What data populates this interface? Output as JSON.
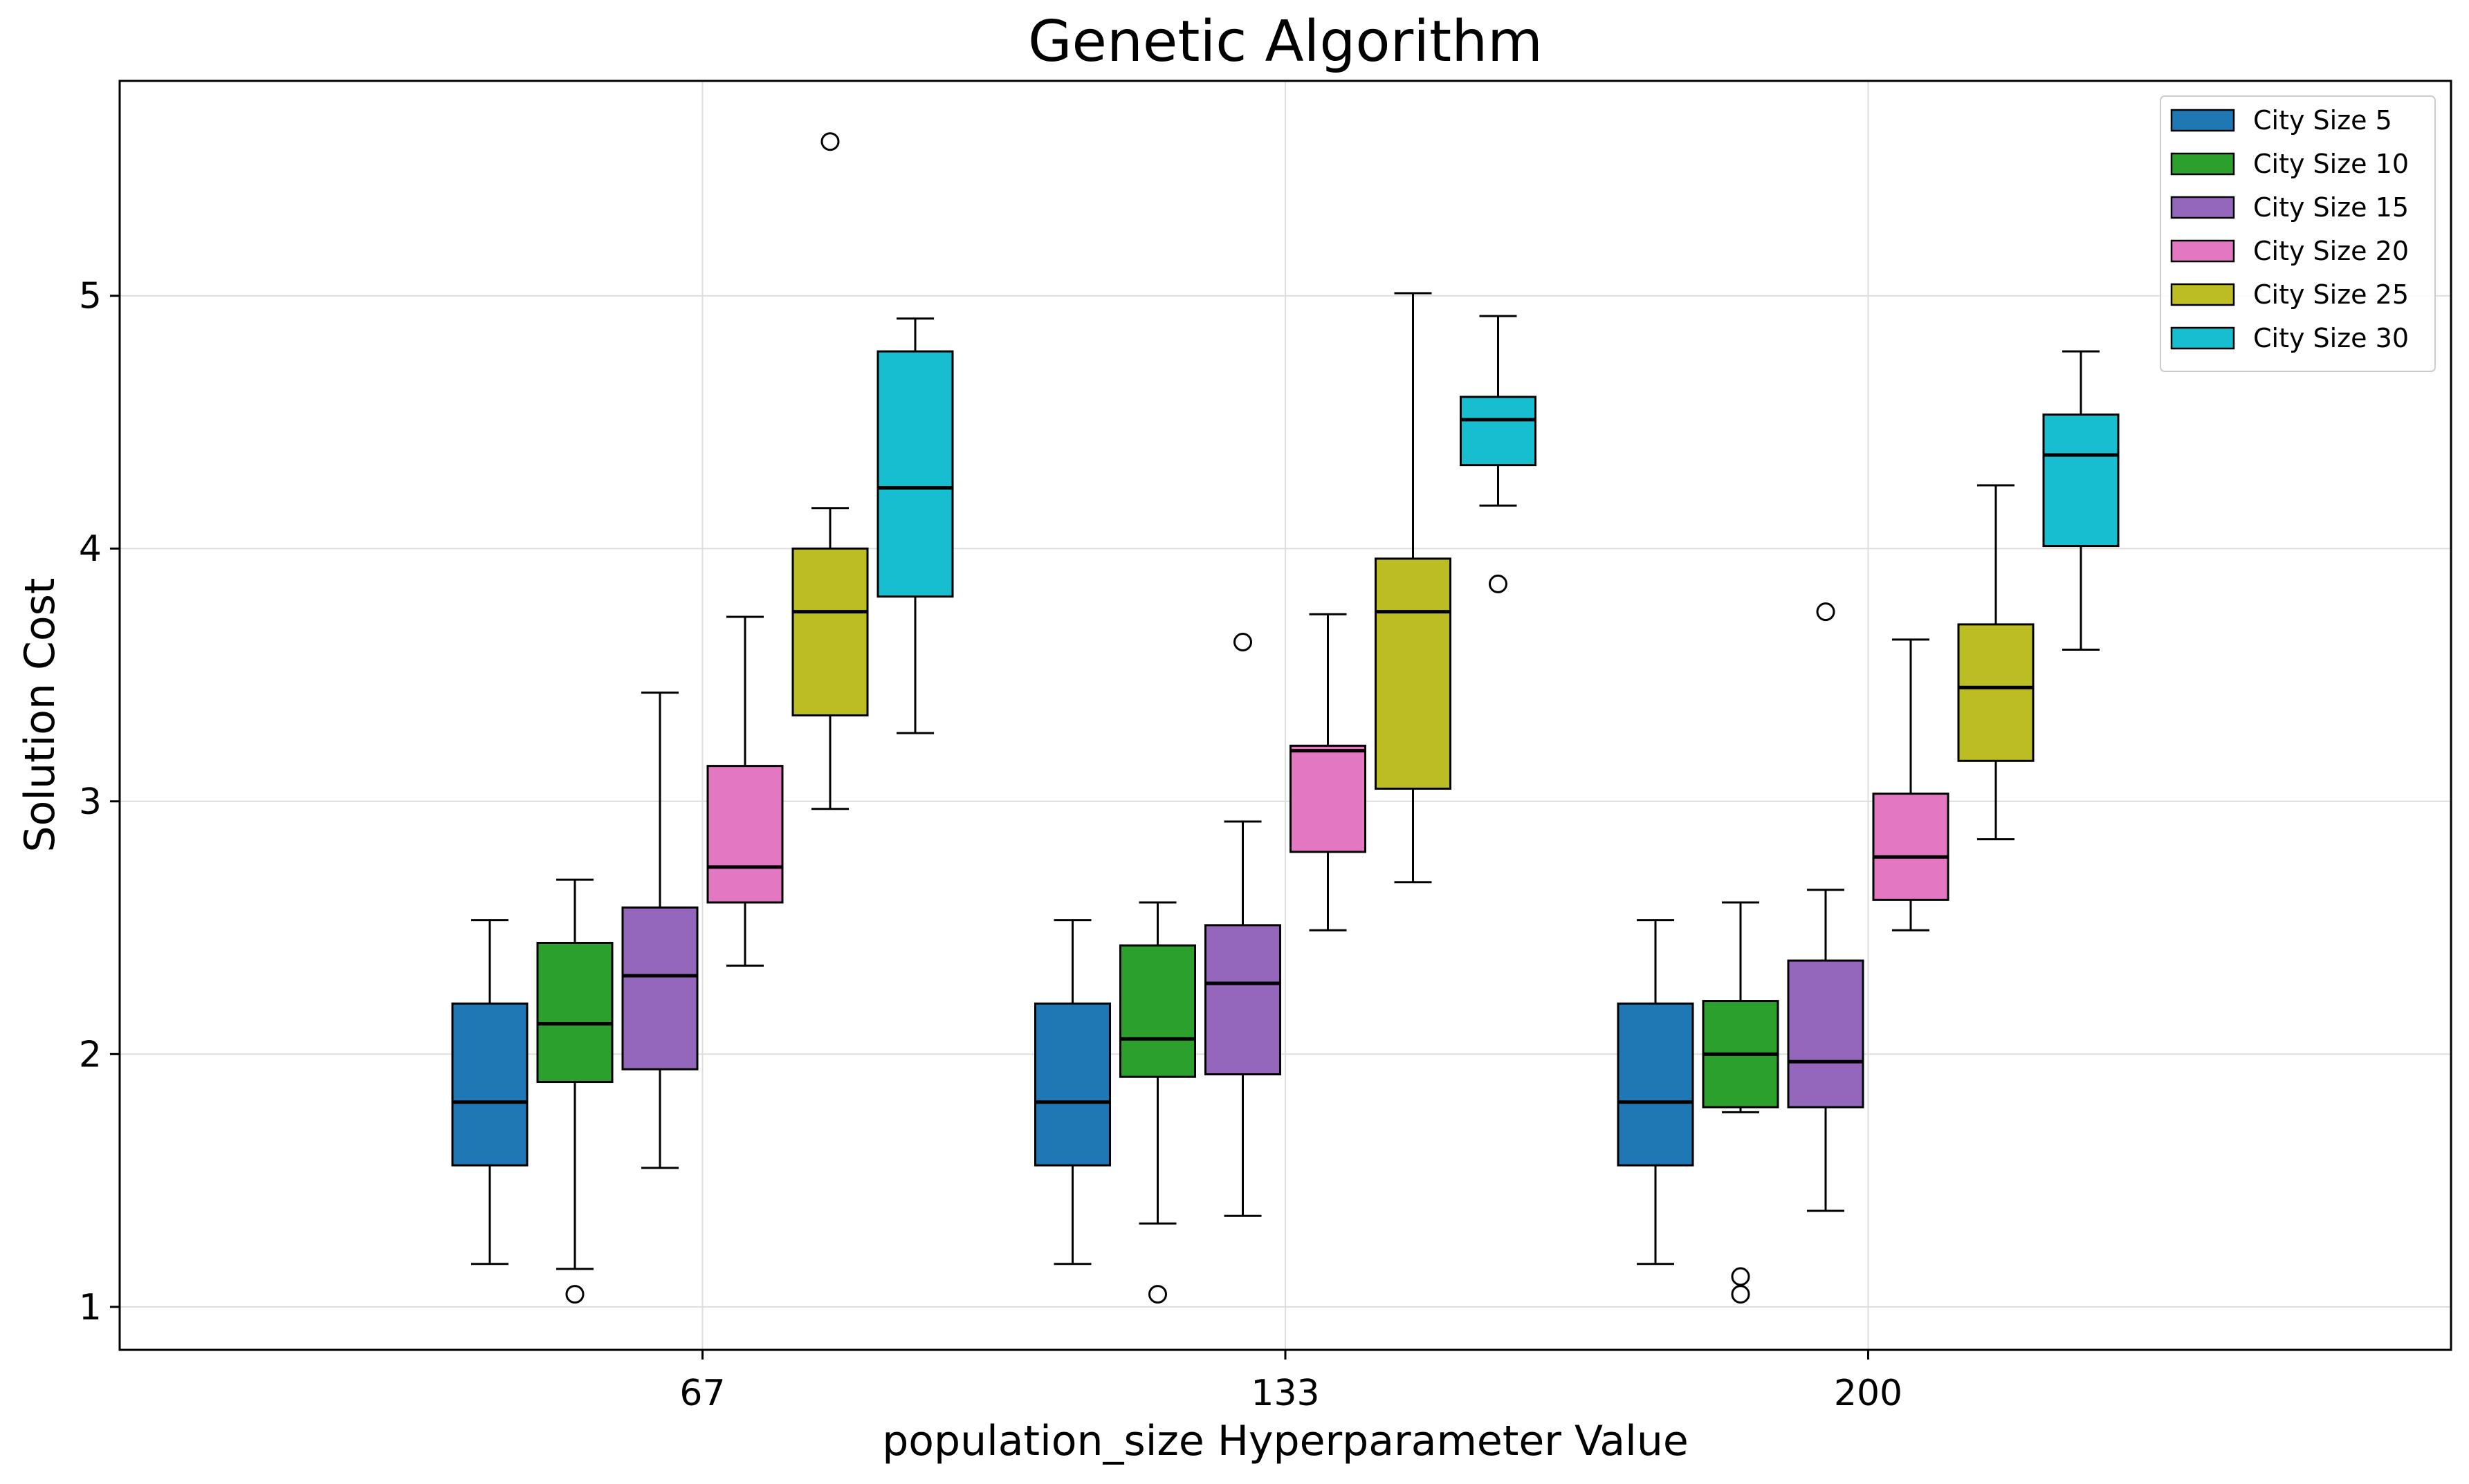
{
  "chart_data": {
    "type": "box",
    "title": "Genetic Algorithm",
    "xlabel": "population_size Hyperparameter Value",
    "ylabel": "Solution Cost",
    "categories": [
      "67",
      "133",
      "200"
    ],
    "ylim": [
      0.83,
      5.85
    ],
    "yticks": [
      1,
      2,
      3,
      4,
      5
    ],
    "grid": true,
    "legend_position": "top-right",
    "series": [
      {
        "name": "City Size 5",
        "color": "#1f77b4",
        "boxes": [
          {
            "whisker_low": 1.17,
            "q1": 1.56,
            "median": 1.81,
            "q3": 2.2,
            "whisker_high": 2.53,
            "outliers": []
          },
          {
            "whisker_low": 1.17,
            "q1": 1.56,
            "median": 1.81,
            "q3": 2.2,
            "whisker_high": 2.53,
            "outliers": []
          },
          {
            "whisker_low": 1.17,
            "q1": 1.56,
            "median": 1.81,
            "q3": 2.2,
            "whisker_high": 2.53,
            "outliers": []
          }
        ]
      },
      {
        "name": "City Size 10",
        "color": "#2ca02c",
        "boxes": [
          {
            "whisker_low": 1.15,
            "q1": 1.89,
            "median": 2.12,
            "q3": 2.44,
            "whisker_high": 2.69,
            "outliers": [
              1.05
            ]
          },
          {
            "whisker_low": 1.33,
            "q1": 1.91,
            "median": 2.06,
            "q3": 2.43,
            "whisker_high": 2.6,
            "outliers": [
              1.05
            ]
          },
          {
            "whisker_low": 1.77,
            "q1": 1.79,
            "median": 2.0,
            "q3": 2.21,
            "whisker_high": 2.6,
            "outliers": [
              1.05,
              1.12
            ]
          }
        ]
      },
      {
        "name": "City Size 15",
        "color": "#9467bd",
        "boxes": [
          {
            "whisker_low": 1.55,
            "q1": 1.94,
            "median": 2.31,
            "q3": 2.58,
            "whisker_high": 3.43,
            "outliers": []
          },
          {
            "whisker_low": 1.36,
            "q1": 1.92,
            "median": 2.28,
            "q3": 2.51,
            "whisker_high": 2.92,
            "outliers": [
              3.63
            ]
          },
          {
            "whisker_low": 1.38,
            "q1": 1.79,
            "median": 1.97,
            "q3": 2.37,
            "whisker_high": 2.65,
            "outliers": [
              3.75
            ]
          }
        ]
      },
      {
        "name": "City Size 20",
        "color": "#e377c2",
        "boxes": [
          {
            "whisker_low": 2.35,
            "q1": 2.6,
            "median": 2.74,
            "q3": 3.14,
            "whisker_high": 3.73,
            "outliers": []
          },
          {
            "whisker_low": 2.49,
            "q1": 2.8,
            "median": 3.2,
            "q3": 3.22,
            "whisker_high": 3.74,
            "outliers": []
          },
          {
            "whisker_low": 2.49,
            "q1": 2.61,
            "median": 2.78,
            "q3": 3.03,
            "whisker_high": 3.64,
            "outliers": []
          }
        ]
      },
      {
        "name": "City Size 25",
        "color": "#bcbd22",
        "boxes": [
          {
            "whisker_low": 2.97,
            "q1": 3.34,
            "median": 3.75,
            "q3": 4.0,
            "whisker_high": 4.16,
            "outliers": [
              5.61
            ]
          },
          {
            "whisker_low": 2.68,
            "q1": 3.05,
            "median": 3.75,
            "q3": 3.96,
            "whisker_high": 5.01,
            "outliers": []
          },
          {
            "whisker_low": 2.85,
            "q1": 3.16,
            "median": 3.45,
            "q3": 3.7,
            "whisker_high": 4.25,
            "outliers": []
          }
        ]
      },
      {
        "name": "City Size 30",
        "color": "#17becf",
        "boxes": [
          {
            "whisker_low": 3.27,
            "q1": 3.81,
            "median": 4.24,
            "q3": 4.78,
            "whisker_high": 4.91,
            "outliers": []
          },
          {
            "whisker_low": 4.17,
            "q1": 4.33,
            "median": 4.51,
            "q3": 4.6,
            "whisker_high": 4.92,
            "outliers": [
              3.86
            ]
          },
          {
            "whisker_low": 3.6,
            "q1": 4.01,
            "median": 4.37,
            "q3": 4.53,
            "whisker_high": 4.78,
            "outliers": []
          }
        ]
      }
    ]
  }
}
